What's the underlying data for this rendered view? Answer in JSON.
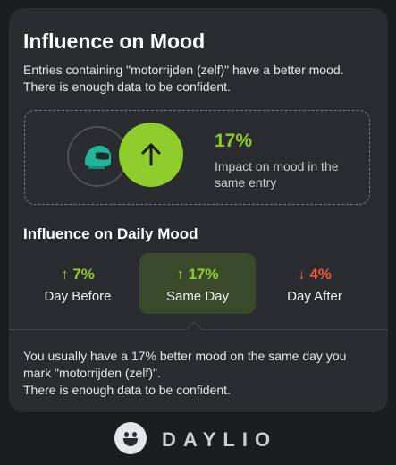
{
  "card": {
    "title": "Influence on Mood",
    "subtitle_lines": [
      "Entries containing \"motorrijden (zelf)\" have a better mood.",
      "There is enough data to be confident."
    ]
  },
  "impact": {
    "icon": "motorcycle-helmet-icon",
    "arrow_icon": "arrow-up-icon",
    "value": "17%",
    "description": "Impact on mood in the same entry",
    "color": "#8fcd2c"
  },
  "daily": {
    "title": "Influence on Daily Mood",
    "tabs": [
      {
        "arrow": "↑",
        "value": "7%",
        "label": "Day Before",
        "color": "#8fcd2c",
        "selected": false
      },
      {
        "arrow": "↑",
        "value": "17%",
        "label": "Same Day",
        "color": "#8fcd2c",
        "selected": true
      },
      {
        "arrow": "↓",
        "value": "4%",
        "label": "Day After",
        "color": "#f0583e",
        "selected": false
      }
    ]
  },
  "explanation_lines": [
    "You usually have a 17% better mood on the same day you",
    "mark \"motorrijden (zelf)\".",
    "There is enough data to be confident."
  ],
  "brand": {
    "name": "DAYLIO",
    "icon": "smiley-face-icon"
  }
}
